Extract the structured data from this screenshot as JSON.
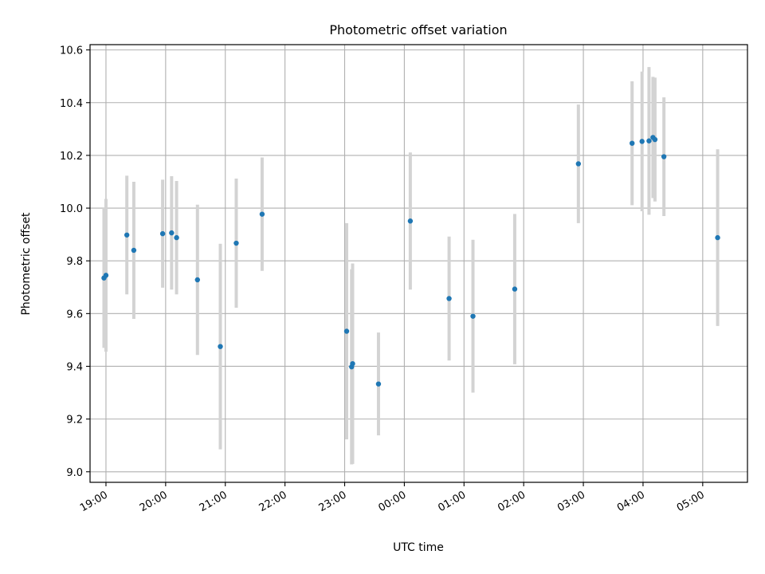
{
  "chart_data": {
    "type": "scatter",
    "title": "Photometric offset variation",
    "xlabel": "UTC time",
    "ylabel": "Photometric offset",
    "xlim": [
      "18:44",
      "05:45"
    ],
    "ylim": [
      8.96,
      10.62
    ],
    "grid": true,
    "x_ticks": [
      "19:00",
      "20:00",
      "21:00",
      "22:00",
      "23:00",
      "00:00",
      "01:00",
      "02:00",
      "03:00",
      "04:00",
      "05:00"
    ],
    "y_ticks": [
      "9.0",
      "9.2",
      "9.4",
      "9.6",
      "9.8",
      "10.0",
      "10.2",
      "10.4",
      "10.6"
    ],
    "series": [
      {
        "marker_color": "#1f77b4",
        "errorbar_color": "#d3d3d3",
        "points": [
          {
            "x": "18:58",
            "y": 9.735,
            "err": 0.265
          },
          {
            "x": "19:00",
            "y": 9.745,
            "err": 0.29
          },
          {
            "x": "19:21",
            "y": 9.898,
            "err": 0.225
          },
          {
            "x": "19:28",
            "y": 9.84,
            "err": 0.26
          },
          {
            "x": "19:57",
            "y": 9.903,
            "err": 0.205
          },
          {
            "x": "20:06",
            "y": 9.906,
            "err": 0.215
          },
          {
            "x": "20:11",
            "y": 9.888,
            "err": 0.215
          },
          {
            "x": "20:32",
            "y": 9.728,
            "err": 0.285
          },
          {
            "x": "20:55",
            "y": 9.475,
            "err": 0.39
          },
          {
            "x": "21:11",
            "y": 9.867,
            "err": 0.245
          },
          {
            "x": "21:37",
            "y": 9.977,
            "err": 0.215
          },
          {
            "x": "23:02",
            "y": 9.533,
            "err": 0.41
          },
          {
            "x": "23:07",
            "y": 9.398,
            "err": 0.37
          },
          {
            "x": "23:08",
            "y": 9.41,
            "err": 0.38
          },
          {
            "x": "23:34",
            "y": 9.333,
            "err": 0.195
          },
          {
            "x": "00:06",
            "y": 9.951,
            "err": 0.26
          },
          {
            "x": "00:45",
            "y": 9.657,
            "err": 0.235
          },
          {
            "x": "01:09",
            "y": 9.59,
            "err": 0.29
          },
          {
            "x": "01:51",
            "y": 9.693,
            "err": 0.285
          },
          {
            "x": "02:55",
            "y": 10.168,
            "err": 0.225
          },
          {
            "x": "03:49",
            "y": 10.246,
            "err": 0.235
          },
          {
            "x": "03:59",
            "y": 10.253,
            "err": 0.265
          },
          {
            "x": "04:06",
            "y": 10.255,
            "err": 0.28
          },
          {
            "x": "04:10",
            "y": 10.268,
            "err": 0.23
          },
          {
            "x": "04:12",
            "y": 10.26,
            "err": 0.235
          },
          {
            "x": "04:21",
            "y": 10.195,
            "err": 0.225
          },
          {
            "x": "05:15",
            "y": 9.888,
            "err": 0.335
          }
        ]
      }
    ]
  }
}
